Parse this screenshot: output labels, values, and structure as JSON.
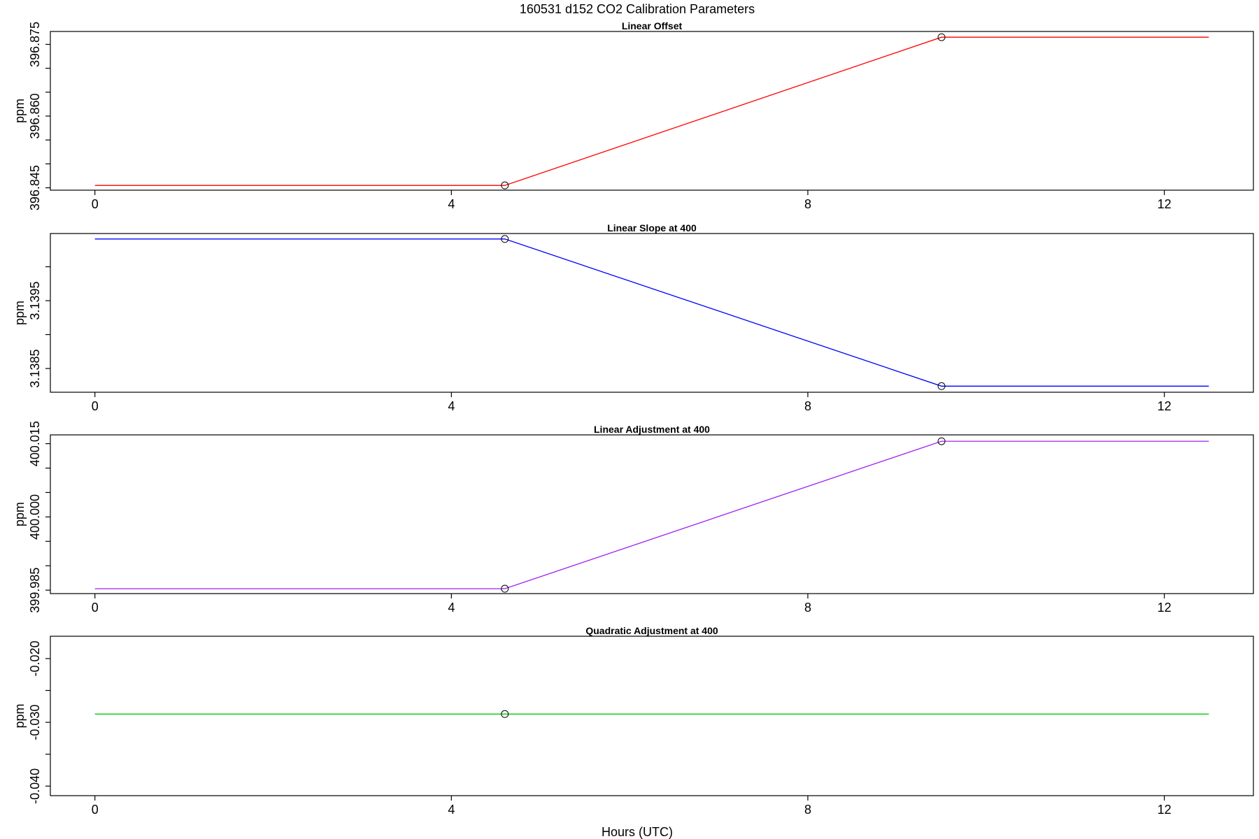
{
  "chart_data": {
    "title": "160531   d152   CO2 Calibration Parameters",
    "xlabel": "Hours (UTC)",
    "xlim": [
      -0.5,
      13
    ],
    "xticks": [
      0,
      4,
      8,
      12
    ],
    "xtick_labels": [
      "0",
      "4",
      "8",
      "12"
    ],
    "panels": [
      {
        "type": "line",
        "title": "Linear Offset",
        "ylabel": "ppm",
        "color": "#ff0000",
        "ylim": [
          396.8445,
          396.8777
        ],
        "yticks": [
          396.845,
          396.85,
          396.855,
          396.86,
          396.865,
          396.87,
          396.875
        ],
        "ytick_labels": [
          "396.845",
          "",
          "",
          "396.860",
          "",
          "",
          "396.875"
        ],
        "x": [
          0,
          4.6,
          9.5,
          12.5
        ],
        "y": [
          396.8455,
          396.8455,
          396.8765,
          396.8765
        ],
        "markers": [
          [
            4.6,
            396.8455
          ],
          [
            9.5,
            396.8765
          ]
        ]
      },
      {
        "type": "line",
        "title": "Linear Slope at 400",
        "ylabel": "ppm",
        "color": "#0000ff",
        "ylim": [
          3.13815,
          3.14049
        ],
        "yticks": [
          3.1385,
          3.139,
          3.1395,
          3.14
        ],
        "ytick_labels": [
          "3.1385",
          "",
          "3.1395",
          ""
        ],
        "x": [
          0,
          4.6,
          9.5,
          12.5
        ],
        "y": [
          3.14041,
          3.14041,
          3.13824,
          3.13824
        ],
        "markers": [
          [
            4.6,
            3.14041
          ],
          [
            9.5,
            3.13824
          ]
        ]
      },
      {
        "type": "line",
        "title": "Linear Adjustment at 400",
        "ylabel": "ppm",
        "color": "#a020f0",
        "ylim": [
          399.9843,
          400.0168
        ],
        "yticks": [
          399.985,
          399.99,
          399.995,
          400.0,
          400.005,
          400.01,
          400.015
        ],
        "ytick_labels": [
          "399.985",
          "",
          "",
          "400.000",
          "",
          "",
          "400.015"
        ],
        "x": [
          0,
          4.6,
          9.5,
          12.5
        ],
        "y": [
          399.9853,
          399.9853,
          400.0155,
          400.0155
        ],
        "markers": [
          [
            4.6,
            399.9853
          ],
          [
            9.5,
            400.0155
          ]
        ]
      },
      {
        "type": "line",
        "title": "Quadratic Adjustment at 400",
        "ylabel": "ppm",
        "color": "#00cd00",
        "ylim": [
          -0.0415,
          -0.0165
        ],
        "yticks": [
          -0.04,
          -0.035,
          -0.03,
          -0.025,
          -0.02
        ],
        "ytick_labels": [
          "-0.040",
          "",
          "-0.030",
          "",
          "-0.020"
        ],
        "x": [
          0,
          12.5
        ],
        "y": [
          -0.0287,
          -0.0287
        ],
        "markers": [
          [
            4.6,
            -0.0287
          ]
        ]
      }
    ]
  }
}
